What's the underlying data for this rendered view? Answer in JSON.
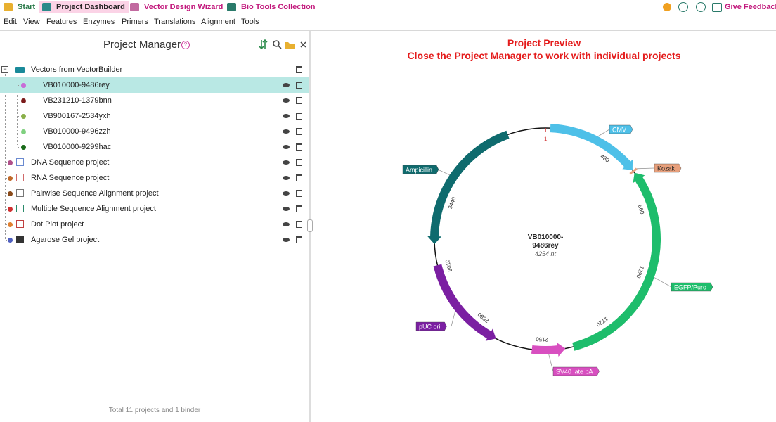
{
  "top_bar": {
    "tabs": [
      "Start",
      "Project Dashboard",
      "Vector Design Wizard",
      "Bio Tools Collection"
    ],
    "feedback": "Give Feedback"
  },
  "menu": [
    "Edit",
    "View",
    "Features",
    "Enzymes",
    "Primers",
    "Translations",
    "Alignment",
    "Tools"
  ],
  "project_manager": {
    "title": "Project Manager",
    "binder": {
      "label": "Vectors from VectorBuilder",
      "vectors": [
        {
          "label": "VB010000-9486rey",
          "color": "#c86dd7",
          "selected": true
        },
        {
          "label": "VB231210-1379bnn",
          "color": "#7b1a1a"
        },
        {
          "label": "VB900167-2534yxh",
          "color": "#8ab04a"
        },
        {
          "label": "VB010000-9496zzh",
          "color": "#7fd07f"
        },
        {
          "label": "VB010000-9299hac",
          "color": "#1a6b1a"
        }
      ]
    },
    "projects": [
      {
        "label": "DNA Sequence project",
        "color": "#b0508a"
      },
      {
        "label": "RNA Sequence project",
        "color": "#c06a2a"
      },
      {
        "label": "Pairwise Sequence Alignment project",
        "color": "#8a4a1a"
      },
      {
        "label": "Multiple Sequence Alignment project",
        "color": "#d03030"
      },
      {
        "label": "Dot Plot project",
        "color": "#e08030"
      },
      {
        "label": "Agarose Gel project",
        "color": "#5060c0"
      }
    ],
    "footer": "Total 11 projects and 1 binder"
  },
  "preview": {
    "title": "Project Preview",
    "subtitle": "Close the Project Manager to work with individual projects",
    "plasmid": {
      "name": [
        "VB010000-",
        "9486rey"
      ],
      "length": {
        "value": 4254,
        "label": "4254 nt"
      },
      "ticks": [
        1,
        430,
        860,
        1290,
        1720,
        2150,
        2580,
        3010,
        3440
      ],
      "features": [
        {
          "label": "CMV",
          "start": 30,
          "end": 610,
          "direction": "forward",
          "color": "#4ec0e8"
        },
        {
          "label": "Kozak",
          "start": 612,
          "end": 625,
          "direction": "forward",
          "color": "#e8a07c"
        },
        {
          "label": "EGFP/Puro",
          "start": 630,
          "end": 1955,
          "direction": "reverse",
          "color": "#1ebd6c"
        },
        {
          "label": "SV40 late pA",
          "start": 2005,
          "end": 2210,
          "direction": "reverse",
          "color": "#d84fc0"
        },
        {
          "label": "pUC ori",
          "start": 2440,
          "end": 3030,
          "direction": "reverse",
          "color": "#7b1fa2"
        },
        {
          "label": "Ampicillin",
          "start": 3160,
          "end": 4020,
          "direction": "reverse",
          "color": "#0f6b6e"
        }
      ]
    }
  }
}
